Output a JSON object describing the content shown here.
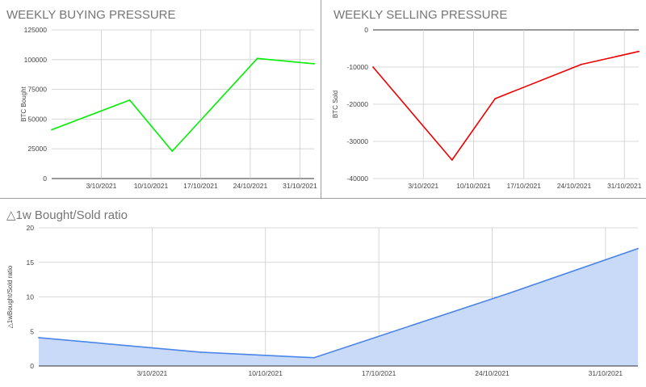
{
  "chart_data": [
    {
      "type": "line",
      "title": "WEEKLY BUYING PRESSURE",
      "ylabel": "BTC Bought",
      "xlabel": "",
      "ylim": [
        0,
        125000
      ],
      "yticks": [
        0,
        25000,
        50000,
        75000,
        100000,
        125000
      ],
      "ytick_labels": [
        "0",
        "25000",
        "50000",
        "75000",
        "100000",
        "125000"
      ],
      "xlim": [
        "2021-09-26",
        "2021-11-02"
      ],
      "xticks": [
        "2021-10-03",
        "2021-10-10",
        "2021-10-17",
        "2021-10-24",
        "2021-10-31"
      ],
      "xtick_labels": [
        "3/10/2021",
        "10/10/2021",
        "17/10/2021",
        "24/10/2021",
        "31/10/2021"
      ],
      "grid": true,
      "series": [
        {
          "color": "#00ee00",
          "x": [
            "2021-09-26",
            "2021-10-07",
            "2021-10-13",
            "2021-10-25",
            "2021-11-02"
          ],
          "values": [
            41000,
            66000,
            23000,
            101000,
            96500
          ]
        }
      ]
    },
    {
      "type": "line",
      "title": "WEEKLY SELLING PRESSURE",
      "ylabel": "BTC Sold",
      "xlabel": "",
      "ylim": [
        -40000,
        0
      ],
      "yticks": [
        -40000,
        -30000,
        -20000,
        -10000,
        0
      ],
      "ytick_labels": [
        "-40000",
        "-30000",
        "-20000",
        "-10000",
        "0"
      ],
      "xlim": [
        "2021-09-26",
        "2021-11-02"
      ],
      "xticks": [
        "2021-10-03",
        "2021-10-10",
        "2021-10-17",
        "2021-10-24",
        "2021-10-31"
      ],
      "xtick_labels": [
        "3/10/2021",
        "10/10/2021",
        "17/10/2021",
        "24/10/2021",
        "31/10/2021"
      ],
      "grid": true,
      "series": [
        {
          "color": "#ee0000",
          "x": [
            "2021-09-26",
            "2021-10-07",
            "2021-10-13",
            "2021-10-25",
            "2021-11-02"
          ],
          "values": [
            -10000,
            -35000,
            -18500,
            -9300,
            -5800
          ]
        }
      ]
    },
    {
      "type": "area",
      "title": "△1w Bought/Sold ratio",
      "ylabel": "△1wBought/Sold ratio",
      "xlabel": "",
      "ylim": [
        0,
        20
      ],
      "yticks": [
        0,
        5,
        10,
        15,
        20
      ],
      "ytick_labels": [
        "0",
        "5",
        "10",
        "15",
        "20"
      ],
      "xlim": [
        "2021-09-26",
        "2021-11-02"
      ],
      "xticks": [
        "2021-10-03",
        "2021-10-10",
        "2021-10-17",
        "2021-10-24",
        "2021-10-31"
      ],
      "xtick_labels": [
        "3/10/2021",
        "10/10/2021",
        "17/10/2021",
        "24/10/2021",
        "31/10/2021"
      ],
      "grid": true,
      "series": [
        {
          "color": "#4a86e8",
          "fill": "#c9daf8",
          "x": [
            "2021-09-26",
            "2021-10-06",
            "2021-10-13",
            "2021-10-25",
            "2021-11-02"
          ],
          "values": [
            4.1,
            2.0,
            1.2,
            10.5,
            17.0
          ]
        }
      ]
    }
  ]
}
